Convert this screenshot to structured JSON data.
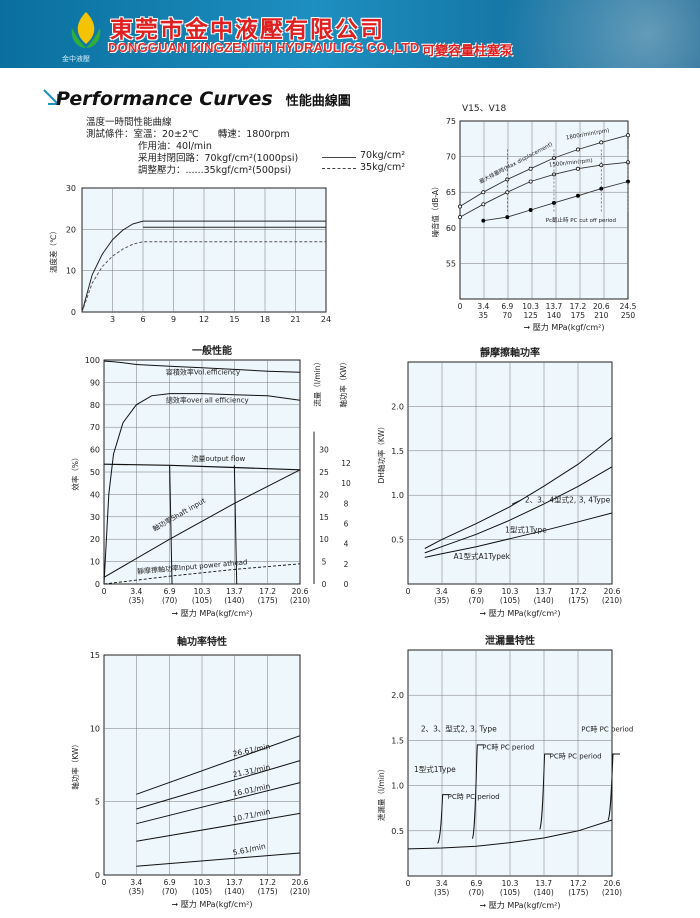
{
  "header": {
    "company_cn": "東莞市金中液壓有限公司",
    "company_en": "DONGGUAN KINGZENITH HYDRAULICS  CO.,LTD",
    "logo_text": "金中液壓",
    "product_tag": "可變容量柱塞泵",
    "accent_color": "#e02020",
    "banner_color": "#1d8fc0"
  },
  "section": {
    "title": "Performance Curves",
    "title_cn": "性能曲線圖"
  },
  "conditions": {
    "line1": "溫度一時間性能曲線",
    "line2": "測試條件：室溫：20±2℃　　轉速：1800rpm",
    "line3": "作用油：40l/min",
    "line4": "采用封閉回路：70kgf/cm²(1000psi)",
    "line4_legend": "70kg/cm²",
    "line5": "調整壓力：......35kgf/cm²(500psi)",
    "line5_legend": "35kg/cm²"
  },
  "chart_data": [
    {
      "id": "temperature",
      "type": "line",
      "ylabel": "溫度差（℃）",
      "xlim": [
        0,
        24
      ],
      "ylim": [
        0,
        30
      ],
      "xticks": [
        "3",
        "6",
        "9",
        "12",
        "15",
        "18",
        "21",
        "24"
      ],
      "yticks": [
        "0",
        "10",
        "20",
        "30"
      ],
      "series": [
        {
          "name": "70kg/cm²",
          "style": "solid",
          "x": [
            0,
            1,
            2,
            3,
            4,
            5,
            6,
            24
          ],
          "y": [
            0,
            9,
            14,
            17.5,
            19.8,
            21.3,
            22,
            22
          ]
        },
        {
          "name": "",
          "style": "solid",
          "x": [
            6,
            24
          ],
          "y": [
            20.5,
            20.5
          ]
        },
        {
          "name": "35kg/cm²",
          "style": "dashed",
          "x": [
            0,
            1,
            2,
            3,
            4,
            5,
            6,
            24
          ],
          "y": [
            0,
            7,
            11,
            13.5,
            15.2,
            16.4,
            17,
            17
          ]
        }
      ]
    },
    {
      "id": "noise",
      "type": "line",
      "title": "V15、V18",
      "ylabel": "噪音值（dB-A）",
      "xlabel": "壓力 MPa(kgf/cm²)",
      "ylim": [
        50,
        75
      ],
      "yticks": [
        "55",
        "60",
        "65",
        "70",
        "75"
      ],
      "xticks_mpa": [
        "0",
        "3.4",
        "6.9",
        "10.3",
        "13.7",
        "17.2",
        "20.6",
        "24.5"
      ],
      "xticks_kgf": [
        "",
        "35",
        "70",
        "125",
        "140",
        "175",
        "210",
        "250"
      ],
      "annotations": [
        "最大排量時(Max displacement)",
        "1800r/min(rpm)",
        "1500r/min(rpm)",
        "Pc截止時 PC cut off period"
      ],
      "series": [
        {
          "name": "1800r/min(rpm)",
          "x": [
            0,
            3.4,
            6.9,
            10.3,
            13.7,
            17.2,
            20.6,
            24.5
          ],
          "y": [
            63,
            65,
            66.8,
            68.3,
            69.8,
            71,
            72,
            73
          ]
        },
        {
          "name": "1500r/min(rpm)",
          "x": [
            0,
            3.4,
            6.9,
            10.3,
            13.7,
            17.2,
            20.6,
            24.5
          ],
          "y": [
            61.5,
            63.3,
            65,
            66.5,
            67.5,
            68.3,
            68.8,
            69.2
          ]
        },
        {
          "name": "Pc截止時 PC cut off period",
          "x": [
            3.4,
            6.9,
            10.3,
            13.7,
            17.2,
            20.6,
            24.5
          ],
          "y": [
            61,
            61.5,
            62.5,
            63.5,
            64.5,
            65.5,
            66.5
          ]
        }
      ]
    },
    {
      "id": "general",
      "type": "line",
      "title": "一般性能",
      "ylabel": "效率（%）",
      "y2label": "流量（l/min）",
      "y3label": "軸功率（KW）",
      "xlabel": "壓力 MPa(kgf/cm²)",
      "ylim": [
        0,
        100
      ],
      "yticks": [
        "0",
        "10",
        "20",
        "30",
        "40",
        "50",
        "60",
        "70",
        "80",
        "90",
        "100"
      ],
      "y2ticks": [
        "0",
        "5",
        "10",
        "15",
        "20",
        "25",
        "30"
      ],
      "y3ticks": [
        "0",
        "2",
        "4",
        "6",
        "8",
        "10",
        "12"
      ],
      "xticks_mpa": [
        "0",
        "3.4",
        "6.9",
        "10.3",
        "13.7",
        "17.2",
        "20.6"
      ],
      "xticks_kgf": [
        "",
        "(35)",
        "(70)",
        "(105)",
        "(140)",
        "(175)",
        "(210)"
      ],
      "series": [
        {
          "name": "容積效率Vol.efficiency",
          "x": [
            0,
            1,
            2,
            3.4,
            6.9,
            10.3,
            13.7,
            17.2,
            20.6
          ],
          "y": [
            99.5,
            99.2,
            98.8,
            98,
            97.2,
            96.5,
            95.8,
            95,
            94.5
          ]
        },
        {
          "name": "總效率over all efficiency",
          "x": [
            0,
            0.5,
            1,
            2,
            3.4,
            5,
            6.9,
            10.3,
            13.7,
            17.2,
            20.6
          ],
          "y": [
            0,
            40,
            58,
            72,
            80,
            84,
            85,
            85,
            84.5,
            84,
            82
          ]
        },
        {
          "name": "流量output flow",
          "x": [
            0,
            6.9,
            13.7,
            20.6
          ],
          "y": [
            53.5,
            53,
            52,
            51
          ]
        },
        {
          "name": "軸功率Shaft input",
          "x": [
            0,
            6.9,
            13.7,
            20.6
          ],
          "y": [
            3,
            20,
            36,
            51
          ]
        },
        {
          "name": "靜摩擦軸功率Input power athead",
          "x": [
            0,
            6.9,
            13.7,
            20.6
          ],
          "y": [
            0,
            3.5,
            6.5,
            9
          ]
        }
      ]
    },
    {
      "id": "static-friction",
      "type": "line",
      "title": "靜摩擦軸功率",
      "ylabel": "DH軸功率（KW）",
      "xlabel": "壓力 MPa(kgf/cm²)",
      "ylim": [
        0,
        2.5
      ],
      "yticks": [
        "0.5",
        "1.0",
        "1.5",
        "2.0"
      ],
      "xticks_mpa": [
        "0",
        "3.4",
        "6.9",
        "10.3",
        "13.7",
        "17.2",
        "20.6"
      ],
      "xticks_kgf": [
        "",
        "(35)",
        "(70)",
        "(105)",
        "(140)",
        "(175)",
        "(210)"
      ],
      "series": [
        {
          "name": "2、3、4型式2, 3, 4Type",
          "x": [
            1.7,
            3.4,
            6.9,
            10.3,
            13.7,
            17.2,
            20.6
          ],
          "y": [
            0.4,
            0.5,
            0.68,
            0.87,
            1.1,
            1.35,
            1.65
          ]
        },
        {
          "name": "1型式1Type",
          "x": [
            1.7,
            3.4,
            6.9,
            10.3,
            13.7,
            17.2,
            20.6
          ],
          "y": [
            0.35,
            0.42,
            0.56,
            0.72,
            0.9,
            1.1,
            1.32
          ]
        },
        {
          "name": "A1型式A1Typek",
          "x": [
            1.7,
            3.4,
            6.9,
            10.3,
            13.7,
            17.2,
            20.6
          ],
          "y": [
            0.3,
            0.34,
            0.42,
            0.51,
            0.6,
            0.7,
            0.8
          ]
        }
      ]
    },
    {
      "id": "shaft-power",
      "type": "line",
      "title": "軸功率特性",
      "ylabel": "軸功率（KW）",
      "xlabel": "壓力 MPa(kgf/cm²)",
      "ylim": [
        0,
        15
      ],
      "yticks": [
        "0",
        "5",
        "10",
        "15"
      ],
      "xticks_mpa": [
        "0",
        "3.4",
        "6.9",
        "10.3",
        "13.7",
        "17.2",
        "20.6"
      ],
      "xticks_kgf": [
        "",
        "(35)",
        "(70)",
        "(105)",
        "(140)",
        "(175)",
        "(210)"
      ],
      "series": [
        {
          "name": "26.61/min",
          "x": [
            3.4,
            20.6
          ],
          "y": [
            5.5,
            9.5
          ]
        },
        {
          "name": "21.31/min",
          "x": [
            3.4,
            20.6
          ],
          "y": [
            4.5,
            7.8
          ]
        },
        {
          "name": "16.01/min",
          "x": [
            3.4,
            20.6
          ],
          "y": [
            3.5,
            6.3
          ]
        },
        {
          "name": "10.71/min",
          "x": [
            3.4,
            20.6
          ],
          "y": [
            2.3,
            4.2
          ]
        },
        {
          "name": "5.61/min",
          "x": [
            3.4,
            20.6
          ],
          "y": [
            0.6,
            1.5
          ]
        }
      ]
    },
    {
      "id": "leakage",
      "type": "line",
      "title": "泄漏量特性",
      "ylabel": "泄漏量（l/min）",
      "xlabel": "壓力 MPa(kgf/cm²)",
      "ylim": [
        0,
        2.5
      ],
      "yticks": [
        "0.5",
        "1.0",
        "1.5",
        "2.0"
      ],
      "xticks_mpa": [
        "0",
        "3.4",
        "6.9",
        "10.3",
        "13.7",
        "17.2",
        "20.6"
      ],
      "xticks_kgf": [
        "",
        "(35)",
        "(70)",
        "(105)",
        "(140)",
        "(175)",
        "(210)"
      ],
      "annotations": [
        "2、3、型式2, 3, Type",
        "PC時 PC period",
        "1型式1Type",
        "PC時 PC period",
        "PC時 PC period",
        "PC時 PC period"
      ],
      "series": [
        {
          "name": "base",
          "x": [
            0,
            3.4,
            6.9,
            10.3,
            13.7,
            17.2,
            20.6
          ],
          "y": [
            0.3,
            0.31,
            0.33,
            0.37,
            0.42,
            0.5,
            0.62
          ]
        }
      ]
    }
  ]
}
